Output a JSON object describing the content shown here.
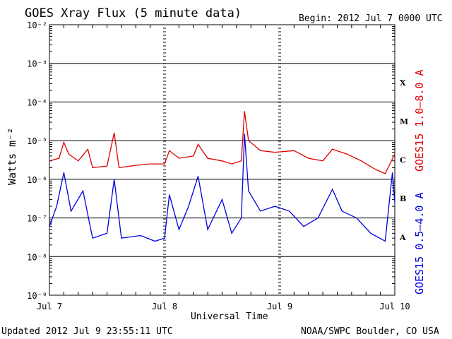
{
  "header": {
    "title": "GOES Xray Flux (5 minute data)",
    "begin": "Begin:  2012 Jul 7 0000 UTC"
  },
  "footer": {
    "updated": "Updated 2012 Jul  9 23:55:11 UTC",
    "credit": "NOAA/SWPC Boulder, CO USA"
  },
  "colors": {
    "long_channel": "#e00000",
    "short_channel": "#0000e0",
    "axis": "#000000"
  },
  "chart_data": {
    "type": "line",
    "xlabel": "Universal Time",
    "ylabel": "Watts m⁻²",
    "y_scale": "log",
    "ylim": [
      1e-09,
      0.01
    ],
    "xlim": [
      "2012-07-07 00:00",
      "2012-07-10 00:00"
    ],
    "x_ticks": [
      "Jul 7",
      "Jul 8",
      "Jul 9",
      "Jul 10"
    ],
    "y_ticks": [
      "10⁻²",
      "10⁻³",
      "10⁻⁴",
      "10⁻⁵",
      "10⁻⁶",
      "10⁻⁷",
      "10⁻⁸",
      "10⁻⁹"
    ],
    "flare_classes": [
      "X",
      "M",
      "C",
      "B",
      "A"
    ],
    "grid": "horizontal lines at 10⁻³ through 10⁻⁸",
    "series": [
      {
        "name": "GOES15 1.0–8.0 A",
        "color": "#e00000",
        "points": [
          [
            "2012-07-07 00:00",
            3e-06
          ],
          [
            "2012-07-07 02:00",
            3.5e-06
          ],
          [
            "2012-07-07 03:00",
            9e-06
          ],
          [
            "2012-07-07 04:00",
            4.5e-06
          ],
          [
            "2012-07-07 06:00",
            3e-06
          ],
          [
            "2012-07-07 08:00",
            6e-06
          ],
          [
            "2012-07-07 09:00",
            2e-06
          ],
          [
            "2012-07-07 12:00",
            2.2e-06
          ],
          [
            "2012-07-07 13:30",
            1.6e-05
          ],
          [
            "2012-07-07 14:30",
            2e-06
          ],
          [
            "2012-07-07 18:00",
            2.3e-06
          ],
          [
            "2012-07-07 21:00",
            2.5e-06
          ],
          [
            "2012-07-08 00:00",
            2.5e-06
          ],
          [
            "2012-07-08 01:00",
            5.5e-06
          ],
          [
            "2012-07-08 03:00",
            3.5e-06
          ],
          [
            "2012-07-08 06:00",
            4e-06
          ],
          [
            "2012-07-08 07:00",
            8e-06
          ],
          [
            "2012-07-08 09:00",
            3.5e-06
          ],
          [
            "2012-07-08 12:00",
            3e-06
          ],
          [
            "2012-07-08 14:00",
            2.5e-06
          ],
          [
            "2012-07-08 16:00",
            3e-06
          ],
          [
            "2012-07-08 16:40",
            5.8e-05
          ],
          [
            "2012-07-08 17:30",
            1e-05
          ],
          [
            "2012-07-08 20:00",
            5.5e-06
          ],
          [
            "2012-07-08 23:00",
            5e-06
          ],
          [
            "2012-07-09 03:00",
            5.5e-06
          ],
          [
            "2012-07-09 06:00",
            3.5e-06
          ],
          [
            "2012-07-09 09:00",
            3e-06
          ],
          [
            "2012-07-09 11:00",
            6e-06
          ],
          [
            "2012-07-09 14:00",
            4.5e-06
          ],
          [
            "2012-07-09 17:00",
            3e-06
          ],
          [
            "2012-07-09 20:00",
            1.8e-06
          ],
          [
            "2012-07-09 22:00",
            1.4e-06
          ],
          [
            "2012-07-10 00:00",
            4.5e-06
          ]
        ]
      },
      {
        "name": "GOES15 0.5–4.0 A",
        "color": "#0000e0",
        "points": [
          [
            "2012-07-07 00:00",
            6e-08
          ],
          [
            "2012-07-07 01:30",
            2e-07
          ],
          [
            "2012-07-07 03:00",
            1.5e-06
          ],
          [
            "2012-07-07 04:30",
            1.5e-07
          ],
          [
            "2012-07-07 07:00",
            5e-07
          ],
          [
            "2012-07-07 09:00",
            3e-08
          ],
          [
            "2012-07-07 12:00",
            4e-08
          ],
          [
            "2012-07-07 13:30",
            1e-06
          ],
          [
            "2012-07-07 15:00",
            3e-08
          ],
          [
            "2012-07-07 19:00",
            3.5e-08
          ],
          [
            "2012-07-07 22:00",
            2.5e-08
          ],
          [
            "2012-07-08 00:00",
            3e-08
          ],
          [
            "2012-07-08 01:00",
            4e-07
          ],
          [
            "2012-07-08 03:00",
            5e-08
          ],
          [
            "2012-07-08 05:00",
            2e-07
          ],
          [
            "2012-07-08 07:00",
            1.2e-06
          ],
          [
            "2012-07-08 09:00",
            5e-08
          ],
          [
            "2012-07-08 12:00",
            3e-07
          ],
          [
            "2012-07-08 14:00",
            4e-08
          ],
          [
            "2012-07-08 16:00",
            1e-07
          ],
          [
            "2012-07-08 16:40",
            1.5e-05
          ],
          [
            "2012-07-08 17:30",
            5e-07
          ],
          [
            "2012-07-08 20:00",
            1.5e-07
          ],
          [
            "2012-07-08 23:00",
            2e-07
          ],
          [
            "2012-07-09 02:00",
            1.5e-07
          ],
          [
            "2012-07-09 05:00",
            6e-08
          ],
          [
            "2012-07-09 08:00",
            1e-07
          ],
          [
            "2012-07-09 11:00",
            5.5e-07
          ],
          [
            "2012-07-09 13:00",
            1.5e-07
          ],
          [
            "2012-07-09 16:00",
            1e-07
          ],
          [
            "2012-07-09 19:00",
            4e-08
          ],
          [
            "2012-07-09 22:00",
            2.5e-08
          ],
          [
            "2012-07-09 23:30",
            1.5e-06
          ],
          [
            "2012-07-10 00:00",
            2.5e-07
          ]
        ]
      }
    ]
  }
}
